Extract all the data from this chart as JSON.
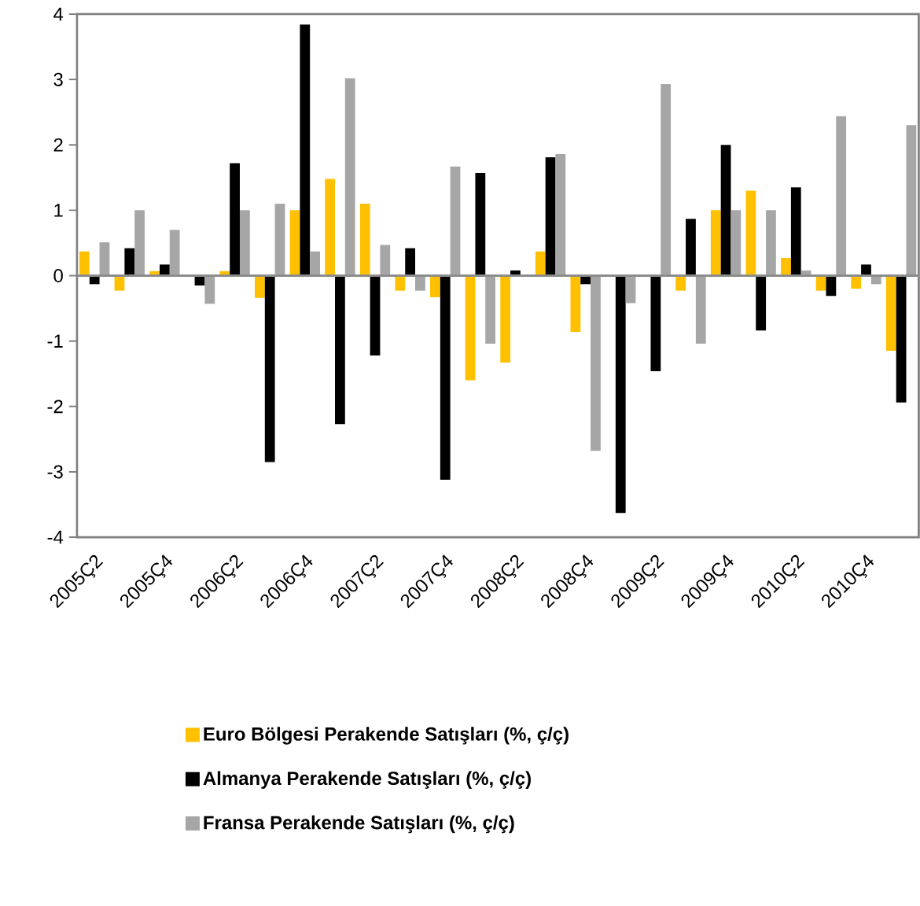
{
  "chart_data": {
    "type": "bar",
    "categories": [
      "2005Ç2",
      null,
      "2005Ç4",
      null,
      "2006Ç2",
      null,
      "2006Ç4",
      null,
      "2007Ç2",
      null,
      "2007Ç4",
      null,
      "2008Ç2",
      null,
      "2008Ç4",
      null,
      "2009Ç2",
      null,
      "2009Ç4",
      null,
      "2010Ç2",
      null,
      "2010Ç4",
      null
    ],
    "series": [
      {
        "name": "Euro Bölgesi Perakende Satışları (%, ç/ç)",
        "color": "#ffc000",
        "values": [
          0.37,
          -0.23,
          0.07,
          0,
          0.07,
          -0.34,
          1.0,
          1.48,
          1.1,
          -0.23,
          -0.33,
          -1.6,
          -1.33,
          0.37,
          -0.86,
          0,
          0,
          -0.23,
          1.0,
          1.3,
          0.27,
          -0.23,
          -0.2,
          -1.15
        ]
      },
      {
        "name": "Almanya Perakende Satışları (%, ç/ç)",
        "color": "#000000",
        "values": [
          -0.13,
          0.42,
          0.17,
          -0.15,
          1.72,
          -2.85,
          3.84,
          -2.27,
          -1.22,
          0.42,
          -3.12,
          1.57,
          0.08,
          1.81,
          -0.13,
          -3.63,
          -1.46,
          0.87,
          2.0,
          -0.84,
          1.35,
          -0.31,
          0.17,
          -1.94
        ]
      },
      {
        "name": "Fransa Perakende Satışları (%, ç/ç)",
        "color": "#a6a6a6",
        "values": [
          0.51,
          1.0,
          0.7,
          -0.43,
          1.0,
          1.1,
          0.37,
          3.02,
          0.47,
          -0.23,
          1.67,
          -1.04,
          0,
          1.86,
          -2.68,
          -0.42,
          2.93,
          -1.04,
          1.0,
          1.0,
          0.08,
          2.44,
          -0.13,
          2.3
        ]
      }
    ],
    "ylim": [
      -4,
      4
    ],
    "yticks": [
      -4,
      -3,
      -2,
      -1,
      0,
      1,
      2,
      3,
      4
    ],
    "legend": "bottom"
  }
}
